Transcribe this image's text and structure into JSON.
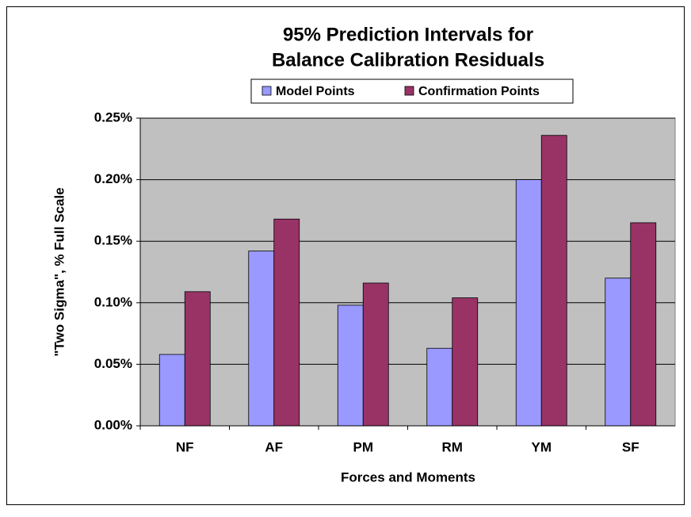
{
  "chart_data": {
    "type": "bar",
    "title": [
      "95% Prediction Intervals for",
      "Balance Calibration Residuals"
    ],
    "x_label": "Forces and Moments",
    "y_label": "\"Two Sigma\", % Full Scale",
    "categories": [
      "NF",
      "AF",
      "PM",
      "RM",
      "YM",
      "SF"
    ],
    "series": [
      {
        "name": "Model Points",
        "color": "#9999ff",
        "values": [
          0.058,
          0.142,
          0.098,
          0.063,
          0.2,
          0.12
        ]
      },
      {
        "name": "Confirmation Points",
        "color": "#993366",
        "values": [
          0.109,
          0.168,
          0.116,
          0.104,
          0.236,
          0.165
        ]
      }
    ],
    "ylim": [
      0,
      0.25
    ],
    "yticks": [
      {
        "value": 0,
        "label": "0.00%"
      },
      {
        "value": 0.05,
        "label": "0.05%"
      },
      {
        "value": 0.1,
        "label": "0.10%"
      },
      {
        "value": 0.15,
        "label": "0.15%"
      },
      {
        "value": 0.2,
        "label": "0.20%"
      },
      {
        "value": 0.25,
        "label": "0.25%"
      }
    ],
    "grid": true,
    "legend": "top",
    "plot_background": "#c0c0c0"
  }
}
